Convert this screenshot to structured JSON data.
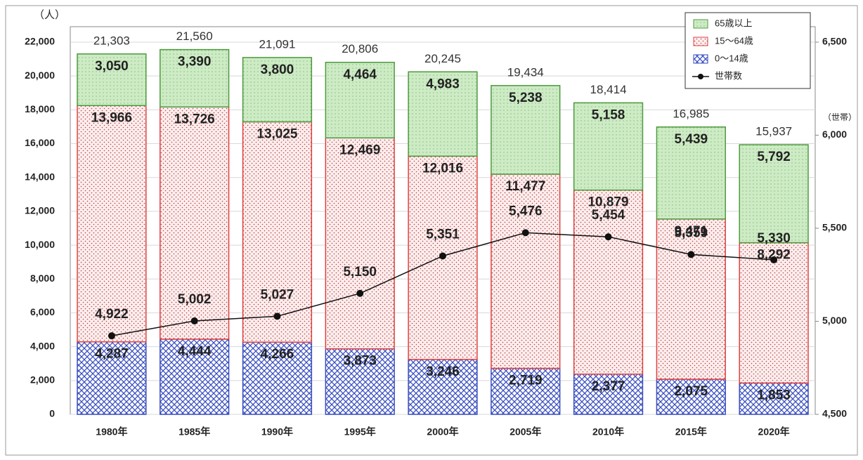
{
  "chart_data": {
    "type": "bar",
    "categories": [
      "1980年",
      "1985年",
      "1990年",
      "1995年",
      "2000年",
      "2005年",
      "2010年",
      "2015年",
      "2020年"
    ],
    "y_label": "（人）",
    "y2_label": "（世帯）",
    "series": [
      {
        "name": "0～14歳",
        "color": "#3a4fc0",
        "values": [
          4287,
          4444,
          4266,
          3873,
          3246,
          2719,
          2377,
          2075,
          1853
        ],
        "value_labels": [
          "4,287",
          "4,444",
          "4,266",
          "3,873",
          "3,246",
          "2,719",
          "2,377",
          "2,075",
          "1,853"
        ]
      },
      {
        "name": "15～64歳",
        "color": "#e04040",
        "values": [
          13966,
          13726,
          13025,
          12469,
          12016,
          11477,
          10879,
          9471,
          8292
        ],
        "value_labels": [
          "13,966",
          "13,726",
          "13,025",
          "12,469",
          "12,016",
          "11,477",
          "10,879",
          "9,471",
          "8,292"
        ]
      },
      {
        "name": "65歳以上",
        "color": "#4e9a3e",
        "values": [
          3050,
          3390,
          3800,
          4464,
          4983,
          5238,
          5158,
          5439,
          5792
        ],
        "value_labels": [
          "3,050",
          "3,390",
          "3,800",
          "4,464",
          "4,983",
          "5,238",
          "5,158",
          "5,439",
          "5,792"
        ]
      },
      {
        "name": "世帯数",
        "type": "line",
        "axis": "y2",
        "color": "#111111",
        "values": [
          4922,
          5002,
          5027,
          5150,
          5351,
          5476,
          5454,
          5359,
          5330
        ],
        "value_labels": [
          "4,922",
          "5,002",
          "5,027",
          "5,150",
          "5,351",
          "5,476",
          "5,454",
          "5,359",
          "5,330"
        ]
      }
    ],
    "totals": [
      21303,
      21560,
      21091,
      20806,
      20245,
      19434,
      18414,
      16985,
      15937
    ],
    "total_labels": [
      "21,303",
      "21,560",
      "21,091",
      "20,806",
      "20,245",
      "19,434",
      "18,414",
      "16,985",
      "15,937"
    ],
    "ylim": [
      0,
      22000
    ],
    "yticks": [
      0,
      {
        "value": 2000,
        "label": "2,000"
      },
      {
        "value": 4000,
        "label": "4,000"
      },
      {
        "value": 6000,
        "label": "6,000"
      },
      {
        "value": 8000,
        "label": "8,000"
      },
      {
        "value": 10000,
        "label": "10,000"
      },
      {
        "value": 12000,
        "label": "12,000"
      },
      {
        "value": 14000,
        "label": "14,000"
      },
      {
        "value": 16000,
        "label": "16,000"
      },
      {
        "value": 18000,
        "label": "18,000"
      },
      {
        "value": 20000,
        "label": "20,000"
      },
      {
        "value": 22000,
        "label": "22,000"
      }
    ],
    "y2lim": [
      4500,
      6500
    ],
    "y2ticks": [
      {
        "value": 4500,
        "label": "4,500"
      },
      {
        "value": 5000,
        "label": "5,000"
      },
      {
        "value": 5500,
        "label": "5,500"
      },
      {
        "value": 6000,
        "label": "6,000"
      },
      {
        "value": 6500,
        "label": "6,500"
      }
    ],
    "grid": true,
    "legend": "upper right"
  }
}
